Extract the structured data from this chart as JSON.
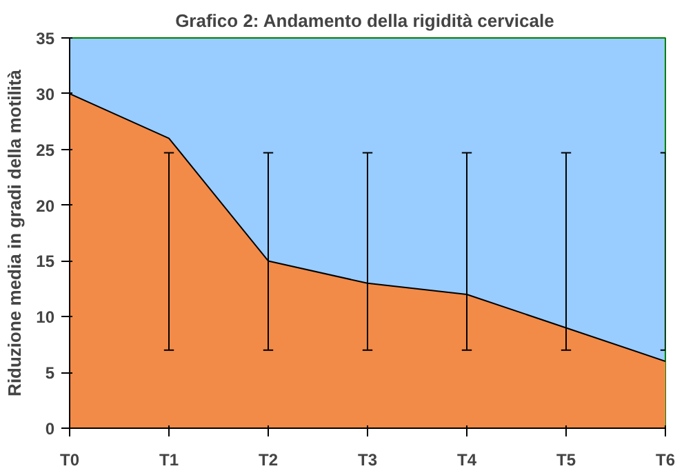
{
  "chart_data": {
    "type": "area",
    "title": "Grafico 2: Andamento della rigidità  cervicale",
    "ylabel": "Riduzione media in gradi della motilità",
    "categories": [
      "T0",
      "T1",
      "T2",
      "T3",
      "T4",
      "T5",
      "T6"
    ],
    "values": [
      30,
      26,
      15,
      13,
      12,
      9,
      6
    ],
    "color": "#f28a48",
    "errors": [
      null,
      [
        7,
        24.7
      ],
      [
        7,
        24.7
      ],
      [
        7,
        24.7
      ],
      [
        7,
        24.7
      ],
      [
        7,
        24.7
      ],
      [
        7,
        24.7
      ]
    ],
    "ylim": [
      0,
      35
    ],
    "yticks": [
      0,
      5,
      10,
      15,
      20,
      25,
      30,
      35
    ],
    "grid": false
  }
}
